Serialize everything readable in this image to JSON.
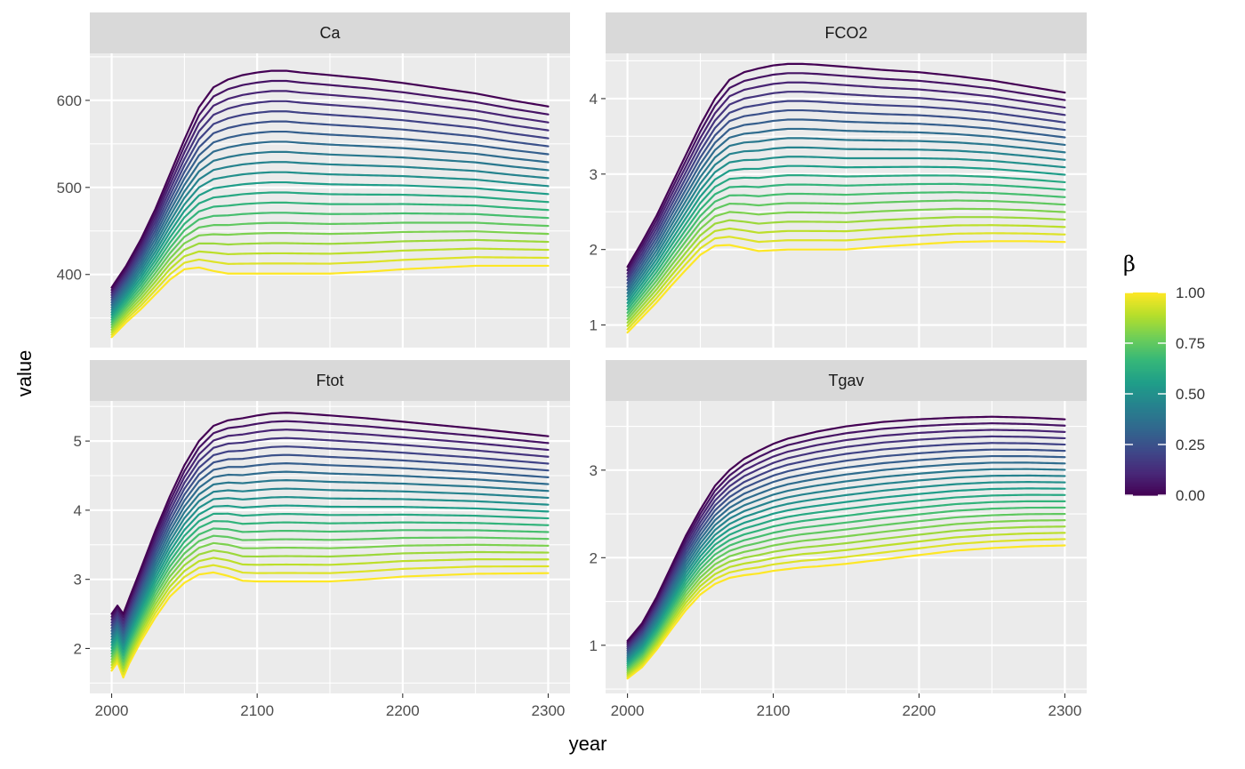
{
  "chart_data": {
    "type": "line",
    "facet_layout": "2x2 grid",
    "x_axis_title": "year",
    "y_axis_title": "value",
    "legend": {
      "title": "β",
      "position": "right",
      "type": "continuous colorbar",
      "palette": "viridis",
      "range": [
        0,
        1
      ],
      "tick_labels": [
        "0.00",
        "0.25",
        "0.50",
        "0.75",
        "1.00"
      ],
      "tick_values": [
        0,
        0.25,
        0.5,
        0.75,
        1.0
      ]
    },
    "grid": true,
    "beta_levels": [
      0,
      0.05,
      0.1,
      0.15,
      0.2,
      0.25,
      0.3,
      0.35,
      0.4,
      0.45,
      0.5,
      0.55,
      0.6,
      0.65,
      0.7,
      0.75,
      0.8,
      0.85,
      0.9,
      0.95,
      1.0
    ],
    "panels": [
      {
        "title": "Ca",
        "xlim": [
          1985,
          2315
        ],
        "ylim": [
          316,
          654
        ],
        "x_ticks": [
          2000,
          2100,
          2200,
          2300
        ],
        "y_ticks": [
          400,
          500,
          600
        ],
        "x_tick_labels": [
          "2000",
          "2100",
          "2200",
          "2300"
        ],
        "y_tick_labels": [
          "400",
          "500",
          "600"
        ],
        "series_profile_beta0": {
          "x": [
            2000,
            2010,
            2020,
            2030,
            2040,
            2050,
            2060,
            2070,
            2080,
            2090,
            2100,
            2110,
            2120,
            2130,
            2150,
            2175,
            2200,
            2225,
            2250,
            2275,
            2300
          ],
          "y": [
            385,
            410,
            440,
            475,
            515,
            555,
            592,
            615,
            624,
            629,
            632,
            634,
            634,
            632,
            629,
            625,
            620,
            614,
            608,
            600,
            593
          ]
        },
        "series_profile_beta1": {
          "x": [
            2000,
            2010,
            2020,
            2030,
            2040,
            2050,
            2060,
            2070,
            2080,
            2090,
            2100,
            2110,
            2120,
            2130,
            2150,
            2175,
            2200,
            2225,
            2250,
            2275,
            2300
          ],
          "y": [
            328,
            345,
            360,
            377,
            394,
            406,
            408,
            404,
            401,
            401,
            401,
            401,
            401,
            401,
            401,
            403,
            406,
            408,
            410,
            410,
            410
          ]
        }
      },
      {
        "title": "FCO2",
        "xlim": [
          1985,
          2315
        ],
        "ylim": [
          0.7,
          4.6
        ],
        "x_ticks": [
          2000,
          2100,
          2200,
          2300
        ],
        "y_ticks": [
          1,
          2,
          3,
          4
        ],
        "x_tick_labels": [
          "2000",
          "2100",
          "2200",
          "2300"
        ],
        "y_tick_labels": [
          "1",
          "2",
          "3",
          "4"
        ],
        "series_profile_beta0": {
          "x": [
            2000,
            2010,
            2020,
            2030,
            2040,
            2050,
            2060,
            2070,
            2080,
            2090,
            2100,
            2110,
            2120,
            2130,
            2150,
            2175,
            2200,
            2225,
            2250,
            2275,
            2300
          ],
          "y": [
            1.77,
            2.1,
            2.45,
            2.85,
            3.25,
            3.65,
            4.0,
            4.25,
            4.35,
            4.4,
            4.44,
            4.46,
            4.46,
            4.45,
            4.42,
            4.38,
            4.35,
            4.3,
            4.24,
            4.16,
            4.08
          ]
        },
        "series_profile_beta1": {
          "x": [
            2000,
            2010,
            2020,
            2030,
            2040,
            2050,
            2060,
            2070,
            2080,
            2090,
            2100,
            2110,
            2120,
            2130,
            2150,
            2175,
            2200,
            2225,
            2250,
            2275,
            2300
          ],
          "y": [
            0.9,
            1.1,
            1.3,
            1.52,
            1.73,
            1.93,
            2.05,
            2.06,
            2.02,
            1.98,
            1.99,
            2.0,
            2.0,
            2.0,
            2.0,
            2.04,
            2.07,
            2.1,
            2.11,
            2.11,
            2.1
          ]
        }
      },
      {
        "title": "Ftot",
        "xlim": [
          1985,
          2315
        ],
        "ylim": [
          1.35,
          5.58
        ],
        "x_ticks": [
          2000,
          2100,
          2200,
          2300
        ],
        "y_ticks": [
          2,
          3,
          4,
          5
        ],
        "x_tick_labels": [
          "2000",
          "2100",
          "2200",
          "2300"
        ],
        "y_tick_labels": [
          "2",
          "3",
          "4",
          "5"
        ],
        "series_profile_beta0": {
          "x": [
            2000,
            2004,
            2008,
            2012,
            2020,
            2030,
            2040,
            2050,
            2060,
            2070,
            2080,
            2090,
            2100,
            2110,
            2120,
            2130,
            2150,
            2175,
            2200,
            2250,
            2300
          ],
          "y": [
            2.5,
            2.62,
            2.5,
            2.72,
            3.15,
            3.7,
            4.2,
            4.65,
            5.0,
            5.22,
            5.3,
            5.33,
            5.37,
            5.4,
            5.41,
            5.4,
            5.37,
            5.33,
            5.28,
            5.18,
            5.07
          ]
        },
        "series_profile_beta1": {
          "x": [
            2000,
            2004,
            2008,
            2012,
            2020,
            2030,
            2040,
            2050,
            2060,
            2070,
            2080,
            2090,
            2100,
            2110,
            2120,
            2130,
            2150,
            2175,
            2200,
            2250,
            2300
          ],
          "y": [
            1.68,
            1.8,
            1.58,
            1.78,
            2.1,
            2.45,
            2.75,
            2.95,
            3.07,
            3.1,
            3.05,
            2.98,
            2.97,
            2.97,
            2.97,
            2.97,
            2.97,
            3.0,
            3.04,
            3.08,
            3.09
          ]
        }
      },
      {
        "title": "Tgav",
        "xlim": [
          1985,
          2315
        ],
        "ylim": [
          0.45,
          3.79
        ],
        "x_ticks": [
          2000,
          2100,
          2200,
          2300
        ],
        "y_ticks": [
          1,
          2,
          3
        ],
        "x_tick_labels": [
          "2000",
          "2100",
          "2200",
          "2300"
        ],
        "y_tick_labels": [
          "1",
          "2",
          "3"
        ],
        "series_profile_beta0": {
          "x": [
            2000,
            2010,
            2020,
            2030,
            2040,
            2050,
            2060,
            2070,
            2080,
            2090,
            2100,
            2110,
            2120,
            2130,
            2150,
            2175,
            2200,
            2225,
            2250,
            2275,
            2300
          ],
          "y": [
            1.05,
            1.25,
            1.55,
            1.9,
            2.25,
            2.55,
            2.82,
            3.0,
            3.13,
            3.22,
            3.3,
            3.36,
            3.4,
            3.44,
            3.5,
            3.55,
            3.58,
            3.6,
            3.61,
            3.6,
            3.58
          ]
        },
        "series_profile_beta1": {
          "x": [
            2000,
            2010,
            2020,
            2030,
            2040,
            2050,
            2060,
            2070,
            2080,
            2090,
            2100,
            2110,
            2120,
            2130,
            2150,
            2175,
            2200,
            2225,
            2250,
            2275,
            2300
          ],
          "y": [
            0.62,
            0.75,
            0.95,
            1.18,
            1.4,
            1.58,
            1.7,
            1.77,
            1.8,
            1.82,
            1.85,
            1.87,
            1.89,
            1.9,
            1.93,
            1.98,
            2.03,
            2.08,
            2.11,
            2.13,
            2.14
          ]
        }
      }
    ]
  }
}
